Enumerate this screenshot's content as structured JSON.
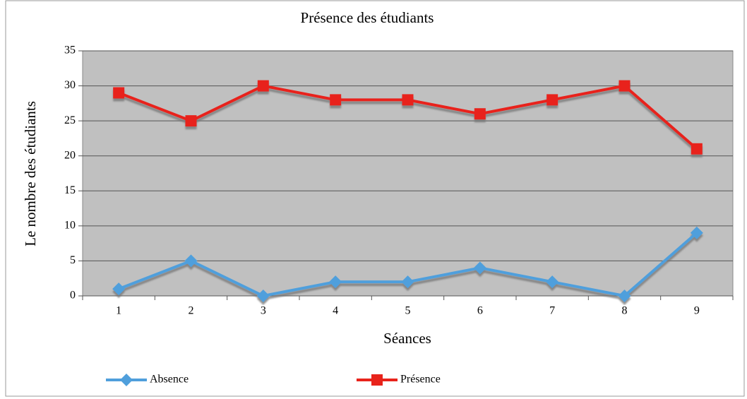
{
  "chart_data": {
    "type": "line",
    "title": "Présence des étudiants",
    "x_label": "Séances",
    "y_label": "Le nombre des étudiants",
    "categories": [
      1,
      2,
      3,
      4,
      5,
      6,
      7,
      8,
      9
    ],
    "series": [
      {
        "name": "Absence",
        "color": "#4f9fdc",
        "marker": "diamond",
        "values": [
          1,
          5,
          0,
          2,
          2,
          4,
          2,
          0,
          9
        ]
      },
      {
        "name": "Présence",
        "color": "#e8231b",
        "marker": "square",
        "values": [
          29,
          25,
          30,
          28,
          28,
          26,
          28,
          30,
          21
        ]
      }
    ],
    "ylim": [
      0,
      35
    ],
    "yticks": [
      0,
      5,
      10,
      15,
      20,
      25,
      30,
      35
    ],
    "grid": true,
    "legend": "bottom"
  }
}
